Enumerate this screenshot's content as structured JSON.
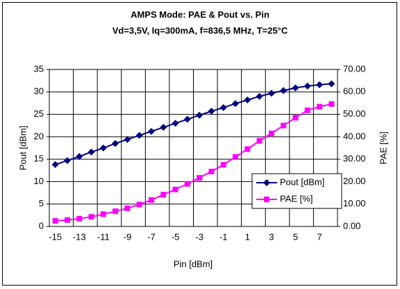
{
  "chart_data": {
    "type": "line",
    "title": "AMPS Mode: PAE & Pout vs. Pin",
    "subtitle": "Vd=3,5V, Iq=300mA, f=836,5 MHz, T=25°C",
    "x_label": "Pin [dBm]",
    "y_label": "Pout [dBm]",
    "y2_label": "PAE [%]",
    "categories": [
      "-15",
      null,
      "-13",
      null,
      "-11",
      null,
      "-9",
      null,
      "-7",
      null,
      "-5",
      null,
      "-3",
      null,
      "-1",
      null,
      "1",
      null,
      "3",
      null,
      "5",
      null,
      "7",
      null
    ],
    "series": [
      {
        "name": "Pout [dBm]",
        "color": "#000080",
        "marker": "diamond",
        "values": [
          13.8,
          14.7,
          15.6,
          16.6,
          17.5,
          18.5,
          19.4,
          20.3,
          21.2,
          22.1,
          23.0,
          23.9,
          24.8,
          25.7,
          26.5,
          27.4,
          28.2,
          29.0,
          29.7,
          30.3,
          30.9,
          31.3,
          31.6,
          31.8
        ]
      },
      {
        "name": "PAE [%]",
        "color": "#ff00ff",
        "marker": "square",
        "axis": "y2",
        "values": [
          2.5,
          2.9,
          3.5,
          4.3,
          5.5,
          6.8,
          8.1,
          9.8,
          11.8,
          14.2,
          16.5,
          19.0,
          21.7,
          24.5,
          27.5,
          31.0,
          34.5,
          38.2,
          41.5,
          45.0,
          48.5,
          51.8,
          53.4,
          54.6
        ]
      }
    ],
    "ylim": [
      0,
      35
    ],
    "yticks": [
      0,
      5,
      10,
      15,
      20,
      25,
      30,
      35
    ],
    "y2lim": [
      0,
      70
    ],
    "y2ticks": [
      {
        "value": 0,
        "label": "0.00"
      },
      {
        "value": 10,
        "label": "10.00"
      },
      {
        "value": 20,
        "label": "20.00"
      },
      {
        "value": 30,
        "label": "30.00"
      },
      {
        "value": 40,
        "label": "40.00"
      },
      {
        "value": 50,
        "label": "50.00"
      },
      {
        "value": 60,
        "label": "60.00"
      },
      {
        "value": 70,
        "label": "70.00"
      }
    ],
    "grid": true,
    "legend": "lower right"
  }
}
